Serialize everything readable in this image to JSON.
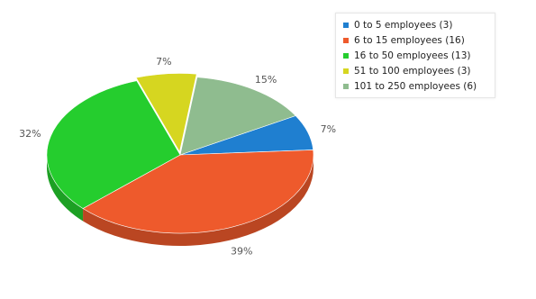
{
  "chart_data": {
    "type": "pie",
    "title": "",
    "legend_position": "top-right",
    "three_d": true,
    "slices": [
      {
        "label": "0 to 5 employees (3)",
        "value": 3,
        "percent_label": "7%",
        "color": "#1f7fd0"
      },
      {
        "label": "6 to 15 employees (16)",
        "value": 16,
        "percent_label": "39%",
        "color": "#ee5a2c"
      },
      {
        "label": "16 to 50 employees (13)",
        "value": 13,
        "percent_label": "32%",
        "color": "#25cd2e"
      },
      {
        "label": "51 to 100 employees (3)",
        "value": 3,
        "percent_label": "7%",
        "color": "#d6d620"
      },
      {
        "label": "101 to 250 employees (6)",
        "value": 6,
        "percent_label": "15%",
        "color": "#8fbc8f"
      }
    ]
  }
}
